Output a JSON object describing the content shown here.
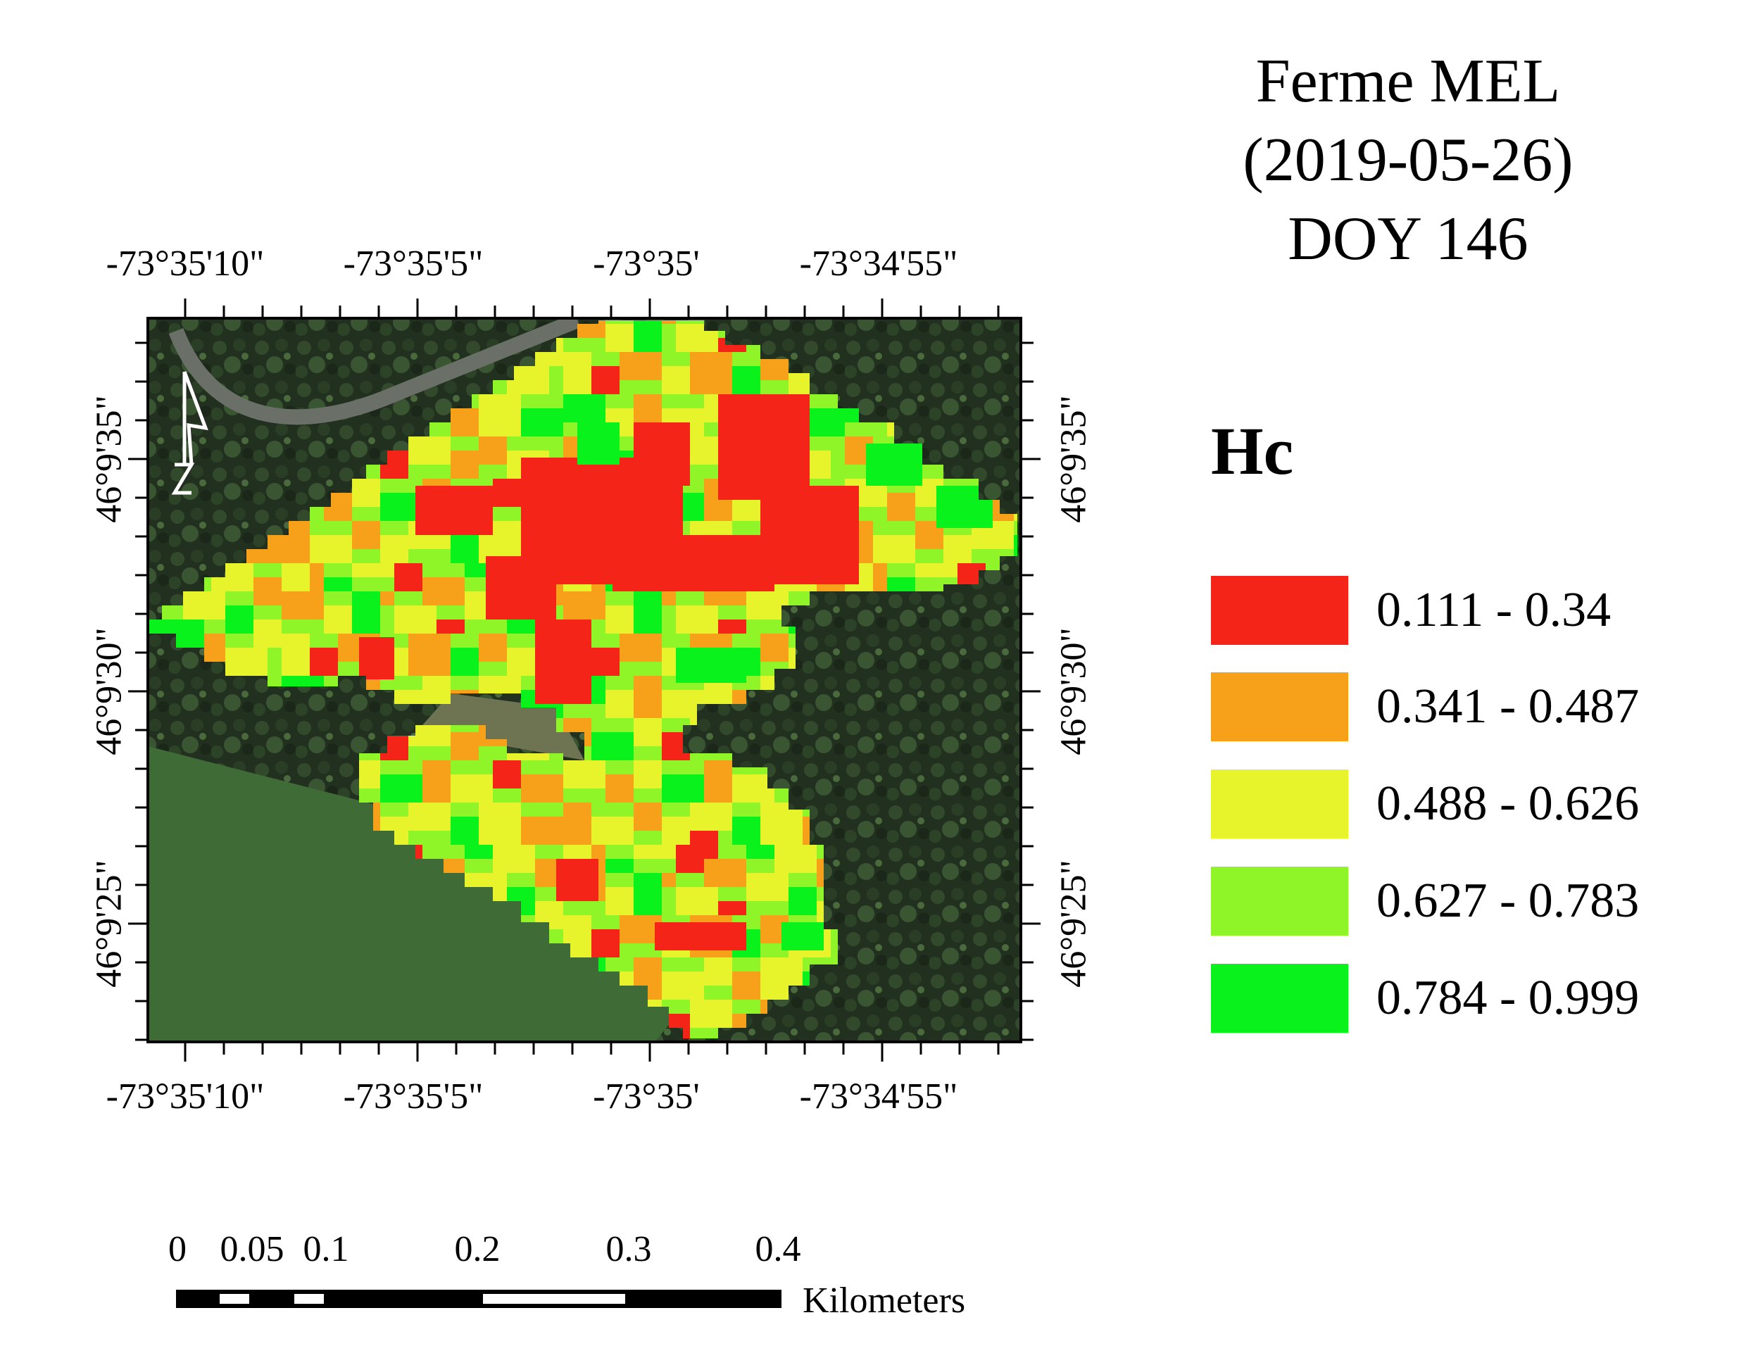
{
  "title_lines": [
    "Ferme MEL",
    "(2019-05-26)",
    "DOY 146"
  ],
  "longitude_labels": [
    "-73°35'10\"",
    "-73°35'5\"",
    "-73°35'",
    "-73°34'55\""
  ],
  "latitude_labels": [
    "46°9'35\"",
    "46°9'30\"",
    "46°9'25\""
  ],
  "legend": {
    "title": "Hc",
    "classes": [
      {
        "range": "0.111 - 0.34",
        "color": "#f42419"
      },
      {
        "range": "0.341 - 0.487",
        "color": "#f7a11b"
      },
      {
        "range": "0.488 - 0.626",
        "color": "#e8f42b"
      },
      {
        "range": "0.627 - 0.783",
        "color": "#8ff428"
      },
      {
        "range": "0.784 - 0.999",
        "color": "#09f21c"
      }
    ]
  },
  "scale_bar": {
    "ticks": [
      "0",
      "0.05",
      "0.1",
      "0.2",
      "0.3",
      "0.4"
    ],
    "unit": "Kilometers"
  },
  "north_arrow_icon": "north-arrow-icon",
  "background": "satellite-imagery"
}
